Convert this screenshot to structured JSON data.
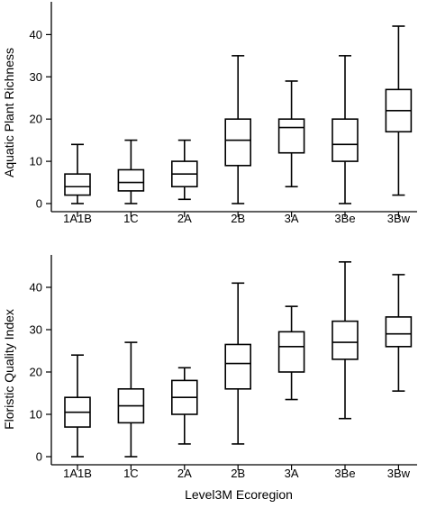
{
  "chart_data": [
    {
      "type": "boxplot",
      "ylabel": "Aquatic Plant Richness",
      "xlabel": "",
      "ylim": [
        0,
        45
      ],
      "yticks": [
        0,
        10,
        20,
        30,
        40
      ],
      "categories": [
        "1A1B",
        "1C",
        "2A",
        "2B",
        "3A",
        "3Be",
        "3Bw"
      ],
      "boxes": [
        {
          "min": 0,
          "q1": 2,
          "median": 4,
          "q3": 7,
          "max": 14
        },
        {
          "min": 0,
          "q1": 3,
          "median": 5,
          "q3": 8,
          "max": 15
        },
        {
          "min": 1,
          "q1": 4,
          "median": 7,
          "q3": 10,
          "max": 15
        },
        {
          "min": 0,
          "q1": 9,
          "median": 15,
          "q3": 20,
          "max": 35
        },
        {
          "min": 4,
          "q1": 12,
          "median": 18,
          "q3": 20,
          "max": 29
        },
        {
          "min": 0,
          "q1": 10,
          "median": 14,
          "q3": 20,
          "max": 35
        },
        {
          "min": 2,
          "q1": 17,
          "median": 22,
          "q3": 27,
          "max": 42
        }
      ]
    },
    {
      "type": "boxplot",
      "ylabel": "Floristic Quality Index",
      "xlabel": "Level3M Ecoregion",
      "ylim": [
        0,
        48
      ],
      "yticks": [
        0,
        10,
        20,
        30,
        40
      ],
      "categories": [
        "1A1B",
        "1C",
        "2A",
        "2B",
        "3A",
        "3Be",
        "3Bw"
      ],
      "boxes": [
        {
          "min": 0,
          "q1": 7,
          "median": 10.5,
          "q3": 14,
          "max": 24
        },
        {
          "min": 0,
          "q1": 8,
          "median": 12,
          "q3": 16,
          "max": 27
        },
        {
          "min": 3,
          "q1": 10,
          "median": 14,
          "q3": 18,
          "max": 21
        },
        {
          "min": 3,
          "q1": 16,
          "median": 22,
          "q3": 26.5,
          "max": 41
        },
        {
          "min": 13.5,
          "q1": 20,
          "median": 26,
          "q3": 29.5,
          "max": 35.5
        },
        {
          "min": 9,
          "q1": 23,
          "median": 27,
          "q3": 32,
          "max": 46
        },
        {
          "min": 15.5,
          "q1": 26,
          "median": 29,
          "q3": 33,
          "max": 43
        }
      ]
    }
  ]
}
